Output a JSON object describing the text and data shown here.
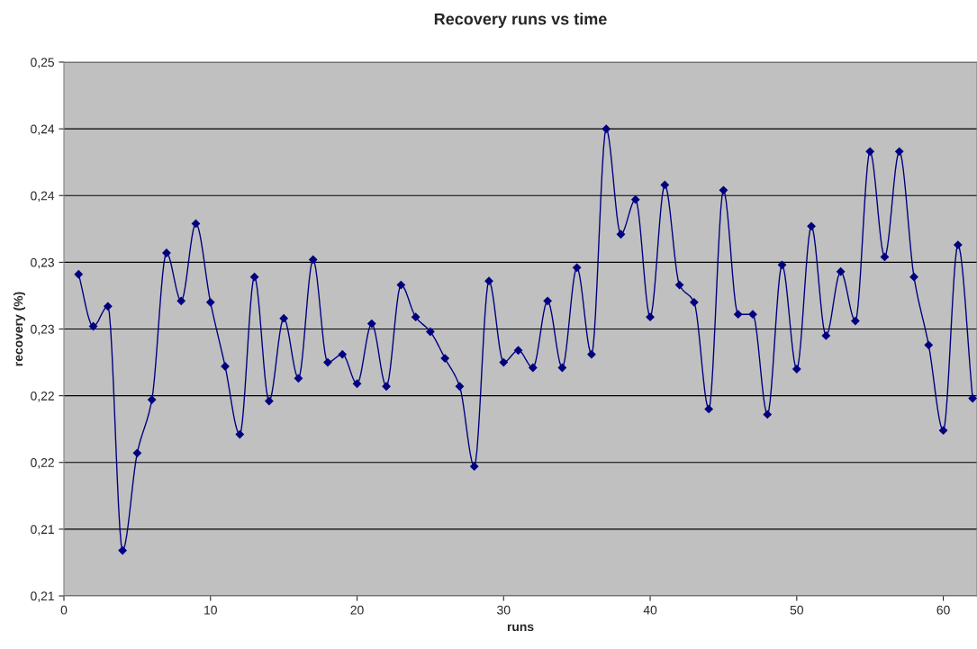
{
  "chart_data": {
    "type": "line",
    "title": "Recovery runs vs time",
    "xlabel": "runs",
    "ylabel": "recovery (%)",
    "x": [
      1,
      2,
      3,
      4,
      5,
      6,
      7,
      8,
      9,
      10,
      11,
      12,
      13,
      14,
      15,
      16,
      17,
      18,
      19,
      20,
      21,
      22,
      23,
      24,
      25,
      26,
      27,
      28,
      29,
      30,
      31,
      32,
      33,
      34,
      35,
      36,
      37,
      38,
      39,
      40,
      41,
      42,
      43,
      44,
      45,
      46,
      47,
      48,
      49,
      50,
      51,
      52,
      53,
      54,
      55,
      56,
      57,
      58,
      59,
      60,
      61,
      62
    ],
    "series": [
      {
        "color": "#000080",
        "values": [
          0.2291,
          0.2252,
          0.2267,
          0.2084,
          0.2157,
          0.2197,
          0.2307,
          0.2271,
          0.2329,
          0.227,
          0.2222,
          0.2171,
          0.2289,
          0.2196,
          0.2258,
          0.2213,
          0.2302,
          0.2225,
          0.2231,
          0.2209,
          0.2254,
          0.2207,
          0.2283,
          0.2259,
          0.2248,
          0.2228,
          0.2207,
          0.2147,
          0.2286,
          0.2225,
          0.2234,
          0.2221,
          0.2271,
          0.2221,
          0.2296,
          0.2231,
          0.24,
          0.2321,
          0.2347,
          0.2259,
          0.2358,
          0.2283,
          0.227,
          0.219,
          0.2354,
          0.2261,
          0.2261,
          0.2186,
          0.2298,
          0.222,
          0.2327,
          0.2245,
          0.2293,
          0.2256,
          0.2383,
          0.2304,
          0.2383,
          0.2289,
          0.2238,
          0.2174,
          0.2313,
          0.2198
        ]
      }
    ],
    "xlim": [
      0,
      62.3
    ],
    "xticks": [
      0,
      10,
      20,
      30,
      40,
      50,
      60
    ],
    "ylim": [
      0.205,
      0.245
    ],
    "yticks": [
      {
        "value": 0.205,
        "label": "0,21"
      },
      {
        "value": 0.21,
        "label": "0,21"
      },
      {
        "value": 0.215,
        "label": "0,22"
      },
      {
        "value": 0.22,
        "label": "0,22"
      },
      {
        "value": 0.225,
        "label": "0,23"
      },
      {
        "value": 0.23,
        "label": "0,23"
      },
      {
        "value": 0.235,
        "label": "0,24"
      },
      {
        "value": 0.24,
        "label": "0,24"
      },
      {
        "value": 0.245,
        "label": "0,25"
      }
    ],
    "grid": "y",
    "marker": "diamond",
    "line_style": "solid",
    "legend": false
  }
}
